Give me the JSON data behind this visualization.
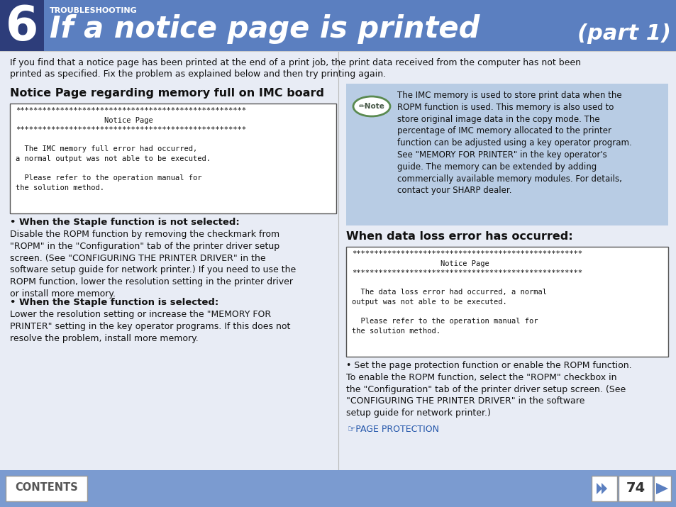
{
  "header_bg_color": "#5b7fc0",
  "header_dark_bg": "#2d3d7a",
  "header_chapter_num": "6",
  "header_troubleshooting": "TROUBLESHOOTING",
  "header_title": "If a notice page is printed",
  "header_part": "(part 1)",
  "body_bg_color": "#e8ecf5",
  "footer_bg_color": "#7b9bd0",
  "page_num": "74",
  "intro_text1": "If you find that a notice page has been printed at the end of a print job, the print data received from the computer has not been",
  "intro_text2": "printed as specified. Fix the problem as explained below and then try printing again.",
  "left_section_title": "Notice Page regarding memory full on IMC board",
  "notice_box1_lines": [
    "****************************************************",
    "                    Notice Page",
    "****************************************************",
    "",
    "  The IMC memory full error had occurred,",
    "a normal output was not able to be executed.",
    "",
    "  Please refer to the operation manual for",
    "the solution method."
  ],
  "bullet1_title": "• When the Staple function is not selected:",
  "bullet1_text": "Disable the ROPM function by removing the checkmark from\n\"ROPM\" in the \"Configuration\" tab of the printer driver setup\nscreen. (See \"CONFIGURING THE PRINTER DRIVER\" in the\nsoftware setup guide for network printer.) If you need to use the\nROPM function, lower the resolution setting in the printer driver\nor install more memory.",
  "bullet2_title": "• When the Staple function is selected:",
  "bullet2_text": "Lower the resolution setting or increase the \"MEMORY FOR\nPRINTER\" setting in the key operator programs. If this does not\nresolve the problem, install more memory.",
  "right_note_bg": "#b8cce4",
  "note_icon_border": "#5a8a50",
  "note_text": "The IMC memory is used to store print data when the\nROPM function is used. This memory is also used to\nstore original image data in the copy mode. The\npercentage of IMC memory allocated to the printer\nfunction can be adjusted using a key operator program.\nSee \"MEMORY FOR PRINTER\" in the key operator's\nguide. The memory can be extended by adding\ncommercially available memory modules. For details,\ncontact your SHARP dealer.",
  "right_section_title": "When data loss error has occurred:",
  "notice_box2_lines": [
    "****************************************************",
    "                    Notice Page",
    "****************************************************",
    "",
    "  The data loss error had occurred, a normal",
    "output was not able to be executed.",
    "",
    "  Please refer to the operation manual for",
    "the solution method."
  ],
  "right_bullet_text": "• Set the page protection function or enable the ROPM function.\nTo enable the ROPM function, select the \"ROPM\" checkbox in\nthe \"Configuration\" tab of the printer driver setup screen. (See\n\"CONFIGURING THE PRINTER DRIVER\" in the software\nsetup guide for network printer.)",
  "link_text": "☞PAGE PROTECTION",
  "contents_text": "CONTENTS"
}
